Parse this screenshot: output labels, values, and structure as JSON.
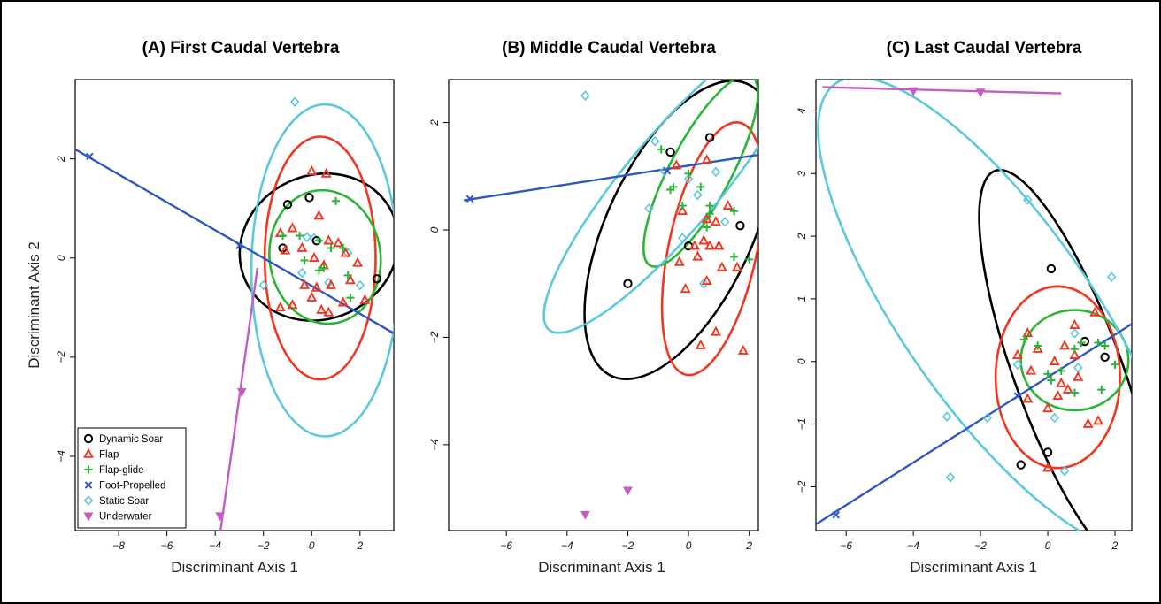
{
  "colors": {
    "Dynamic Soar": "#000000",
    "Flap": "#f2361f",
    "Flap-glide": "#2bb535",
    "Foot-Propelled": "#2f58c4",
    "Static Soar": "#5cc8de",
    "Underwater": "#c25ec2"
  },
  "markers": {
    "Dynamic Soar": "circle",
    "Flap": "triangle",
    "Flap-glide": "plus",
    "Foot-Propelled": "cross",
    "Static Soar": "diamond",
    "Underwater": "triangle-down"
  },
  "legend": {
    "placement": "bottom-left of panel A",
    "entries": [
      "Dynamic Soar",
      "Flap",
      "Flap-glide",
      "Foot-Propelled",
      "Static Soar",
      "Underwater"
    ]
  },
  "chart_data": [
    {
      "type": "scatter",
      "title": "(A) First Caudal Vertebra",
      "xlabel": "Discriminant Axis 1",
      "ylabel": "Discriminant Axis 2",
      "xlim": [
        -9.8,
        3.4
      ],
      "ylim": [
        -5.5,
        3.6
      ],
      "xticks": [
        -8,
        -6,
        -4,
        -2,
        0,
        2
      ],
      "yticks": [
        -4,
        -2,
        0,
        2
      ],
      "points": {
        "Dynamic Soar": [
          [
            -1.2,
            0.2
          ],
          [
            -1.0,
            1.08
          ],
          [
            -0.1,
            1.22
          ],
          [
            0.2,
            0.35
          ],
          [
            2.7,
            -0.42
          ]
        ],
        "Flap": [
          [
            -1.3,
            0.5
          ],
          [
            -1.1,
            0.15
          ],
          [
            -0.8,
            0.6
          ],
          [
            -0.4,
            0.2
          ],
          [
            0.0,
            1.75
          ],
          [
            0.6,
            1.7
          ],
          [
            0.3,
            0.85
          ],
          [
            0.7,
            0.35
          ],
          [
            1.1,
            0.3
          ],
          [
            0.1,
            0.0
          ],
          [
            0.5,
            -0.15
          ],
          [
            1.4,
            0.1
          ],
          [
            1.9,
            -0.1
          ],
          [
            1.6,
            -0.45
          ],
          [
            0.2,
            -0.6
          ],
          [
            0.0,
            -0.8
          ],
          [
            -0.3,
            -0.55
          ],
          [
            0.8,
            -0.55
          ],
          [
            1.3,
            -0.9
          ],
          [
            2.2,
            -0.85
          ],
          [
            -1.3,
            -1.0
          ],
          [
            -0.8,
            -0.95
          ],
          [
            0.4,
            -1.05
          ],
          [
            0.7,
            -1.1
          ]
        ],
        "Flap-glide": [
          [
            -1.2,
            0.45
          ],
          [
            -0.5,
            0.45
          ],
          [
            0.3,
            0.35
          ],
          [
            1.0,
            1.15
          ],
          [
            0.8,
            0.2
          ],
          [
            1.3,
            0.2
          ],
          [
            -0.3,
            -0.05
          ],
          [
            0.3,
            -0.25
          ],
          [
            1.5,
            -0.35
          ],
          [
            1.6,
            -0.8
          ],
          [
            0.5,
            -0.2
          ]
        ],
        "Foot-Propelled": [
          [
            -9.2,
            2.05
          ],
          [
            -3.0,
            0.25
          ]
        ],
        "Static Soar": [
          [
            -0.7,
            3.15
          ],
          [
            -0.2,
            0.42
          ],
          [
            0.1,
            0.4
          ],
          [
            -0.4,
            -0.3
          ],
          [
            0.7,
            -0.5
          ],
          [
            1.5,
            0.1
          ],
          [
            2.0,
            -0.55
          ],
          [
            -2.0,
            -0.55
          ]
        ],
        "Underwater": [
          [
            -2.9,
            -2.7
          ],
          [
            -3.8,
            -5.2
          ]
        ]
      },
      "lines": {
        "Foot-Propelled": [
          [
            -9.9,
            2.22
          ],
          [
            3.4,
            -1.52
          ]
        ],
        "Underwater": [
          [
            -2.25,
            -0.2
          ],
          [
            -3.78,
            -5.5
          ]
        ]
      },
      "ellipses": [
        {
          "group": "Dynamic Soar",
          "center": [
            0.3,
            0.22
          ],
          "semi_x": 3.35,
          "semi_y": 1.45,
          "angle_deg": -25
        },
        {
          "group": "Flap",
          "center": [
            0.35,
            0.0
          ],
          "semi_x": 2.3,
          "semi_y": 2.45,
          "angle_deg": 0
        },
        {
          "group": "Flap-glide",
          "center": [
            0.55,
            0.02
          ],
          "semi_x": 2.3,
          "semi_y": 1.35,
          "angle_deg": -8
        },
        {
          "group": "Static Soar",
          "center": [
            0.55,
            -0.25
          ],
          "semi_x": 3.05,
          "semi_y": 3.35,
          "angle_deg": 0
        }
      ]
    },
    {
      "type": "scatter",
      "title": "(B) Middle Caudal Vertebra",
      "xlabel": "Discriminant Axis 1",
      "ylabel": "",
      "xlim": [
        -7.9,
        2.3
      ],
      "ylim": [
        -5.6,
        2.8
      ],
      "xticks": [
        -6,
        -4,
        -2,
        0,
        2
      ],
      "yticks": [
        -4,
        -2,
        0,
        2
      ],
      "points": {
        "Dynamic Soar": [
          [
            -0.6,
            1.45
          ],
          [
            0.7,
            1.72
          ],
          [
            0.0,
            -0.3
          ],
          [
            1.7,
            0.08
          ],
          [
            -2.0,
            -1.0
          ]
        ],
        "Flap": [
          [
            -0.4,
            1.2
          ],
          [
            0.6,
            1.3
          ],
          [
            -0.2,
            0.35
          ],
          [
            0.6,
            0.2
          ],
          [
            0.9,
            0.15
          ],
          [
            1.3,
            0.45
          ],
          [
            0.2,
            -0.3
          ],
          [
            0.5,
            -0.2
          ],
          [
            1.0,
            -0.3
          ],
          [
            0.7,
            -0.3
          ],
          [
            0.3,
            -0.5
          ],
          [
            -0.3,
            -0.6
          ],
          [
            1.1,
            -0.7
          ],
          [
            1.6,
            -0.7
          ],
          [
            0.6,
            -0.95
          ],
          [
            -0.1,
            -1.1
          ],
          [
            0.9,
            -1.9
          ],
          [
            0.4,
            -2.15
          ],
          [
            1.8,
            -2.25
          ]
        ],
        "Flap-glide": [
          [
            -0.9,
            1.5
          ],
          [
            -0.5,
            0.8
          ],
          [
            -0.2,
            0.45
          ],
          [
            0.0,
            1.05
          ],
          [
            0.7,
            0.45
          ],
          [
            0.7,
            0.3
          ],
          [
            0.4,
            0.8
          ],
          [
            0.6,
            0.05
          ],
          [
            -0.6,
            0.75
          ],
          [
            1.5,
            0.35
          ],
          [
            1.5,
            -0.5
          ],
          [
            2.0,
            -0.55
          ]
        ],
        "Foot-Propelled": [
          [
            -7.2,
            0.58
          ],
          [
            -0.7,
            1.1
          ]
        ],
        "Static Soar": [
          [
            -3.4,
            2.5
          ],
          [
            -1.1,
            1.65
          ],
          [
            0.0,
            0.95
          ],
          [
            -1.3,
            0.4
          ],
          [
            -0.8,
            1.1
          ],
          [
            0.3,
            0.65
          ],
          [
            -0.2,
            -0.15
          ],
          [
            0.9,
            1.08
          ],
          [
            1.2,
            0.15
          ],
          [
            0.5,
            -1.0
          ]
        ],
        "Underwater": [
          [
            -3.4,
            -5.3
          ],
          [
            -2.0,
            -4.85
          ]
        ]
      },
      "lines": {
        "Foot-Propelled": [
          [
            -7.4,
            0.55
          ],
          [
            2.3,
            1.4
          ]
        ]
      },
      "ellipses": [
        {
          "group": "Dynamic Soar",
          "center": [
            -0.3,
            0.0
          ],
          "semi_x": 2.4,
          "semi_y": 3.0,
          "angle_deg": 25
        },
        {
          "group": "Flap",
          "center": [
            0.8,
            -0.35
          ],
          "semi_x": 1.45,
          "semi_y": 2.4,
          "angle_deg": 12
        },
        {
          "group": "Flap-glide",
          "center": [
            0.4,
            1.1
          ],
          "semi_x": 1.0,
          "semi_y": 2.0,
          "angle_deg": 28
        },
        {
          "group": "Static Soar",
          "center": [
            -0.5,
            0.9
          ],
          "semi_x": 1.55,
          "semi_y": 3.6,
          "angle_deg": 40
        }
      ]
    },
    {
      "type": "scatter",
      "title": "(C) Last Caudal Vertebra",
      "xlabel": "Discriminant Axis 1",
      "ylabel": "",
      "xlim": [
        -6.9,
        2.5
      ],
      "ylim": [
        -2.7,
        4.5
      ],
      "xticks": [
        -6,
        -4,
        -2,
        0,
        2
      ],
      "yticks": [
        -2,
        -1,
        0,
        1,
        2,
        3,
        4
      ],
      "points": {
        "Dynamic Soar": [
          [
            0.1,
            1.48
          ],
          [
            1.1,
            0.32
          ],
          [
            1.7,
            0.07
          ],
          [
            -0.8,
            -1.65
          ],
          [
            0.0,
            -1.45
          ]
        ],
        "Flap": [
          [
            -0.6,
            0.45
          ],
          [
            -0.9,
            0.1
          ],
          [
            -0.3,
            0.2
          ],
          [
            0.2,
            0.0
          ],
          [
            0.8,
            0.58
          ],
          [
            1.4,
            0.78
          ],
          [
            0.5,
            0.25
          ],
          [
            0.8,
            0.1
          ],
          [
            -0.5,
            -0.15
          ],
          [
            0.4,
            -0.35
          ],
          [
            -0.6,
            -0.6
          ],
          [
            0.6,
            -0.45
          ],
          [
            0.3,
            -0.55
          ],
          [
            0.0,
            -0.75
          ],
          [
            1.2,
            -1.0
          ],
          [
            1.5,
            -0.95
          ],
          [
            0.0,
            -1.7
          ],
          [
            0.9,
            -0.25
          ]
        ],
        "Flap-glide": [
          [
            -0.7,
            0.35
          ],
          [
            -0.3,
            0.25
          ],
          [
            0.1,
            -0.3
          ],
          [
            0.4,
            -0.15
          ],
          [
            0.8,
            0.2
          ],
          [
            1.0,
            0.3
          ],
          [
            1.7,
            0.25
          ],
          [
            1.5,
            0.3
          ],
          [
            0.8,
            -0.5
          ],
          [
            1.6,
            -0.45
          ],
          [
            2.0,
            -0.05
          ],
          [
            0.0,
            -0.2
          ]
        ],
        "Foot-Propelled": [
          [
            -6.3,
            -2.45
          ],
          [
            -0.9,
            -0.55
          ]
        ],
        "Static Soar": [
          [
            -0.6,
            2.58
          ],
          [
            1.9,
            1.35
          ],
          [
            -1.8,
            -0.9
          ],
          [
            -3.0,
            -0.88
          ],
          [
            -2.9,
            -1.85
          ],
          [
            -0.9,
            -0.05
          ],
          [
            0.8,
            0.45
          ],
          [
            0.9,
            -0.1
          ],
          [
            0.5,
            -1.75
          ],
          [
            0.2,
            -0.9
          ]
        ],
        "Underwater": [
          [
            -4.0,
            4.32
          ],
          [
            -2.0,
            4.3
          ]
        ]
      },
      "lines": {
        "Foot-Propelled": [
          [
            -6.9,
            -2.6
          ],
          [
            2.5,
            0.6
          ]
        ],
        "Underwater": [
          [
            -6.7,
            4.38
          ],
          [
            0.4,
            4.28
          ]
        ]
      },
      "ellipses": [
        {
          "group": "Dynamic Soar",
          "center": [
            0.6,
            -0.15
          ],
          "semi_x": 1.6,
          "semi_y": 3.4,
          "angle_deg": -20
        },
        {
          "group": "Flap",
          "center": [
            0.3,
            -0.25
          ],
          "semi_x": 1.85,
          "semi_y": 1.45,
          "angle_deg": 0
        },
        {
          "group": "Flap-glide",
          "center": [
            0.8,
            0.02
          ],
          "semi_x": 1.6,
          "semi_y": 0.8,
          "angle_deg": 0
        },
        {
          "group": "Static Soar",
          "center": [
            -1.5,
            0.75
          ],
          "semi_x": 2.8,
          "semi_y": 4.5,
          "angle_deg": -35
        }
      ]
    }
  ]
}
